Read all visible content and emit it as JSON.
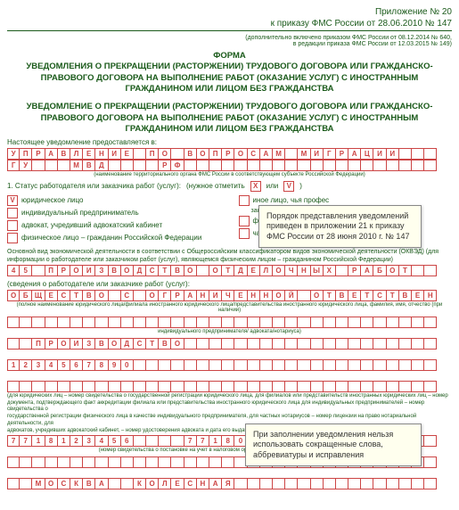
{
  "header": {
    "line1": "Приложение № 20",
    "line2": "к приказу ФМС России от 28.06.2010 № 147",
    "sub1": "(дополнительно включено приказом ФМС России от 08.12.2014 № 640,",
    "sub2": "в редакции приказа ФМС России от 12.03.2015 № 149)"
  },
  "title": {
    "l1": "ФОРМА",
    "l2": "УВЕДОМЛЕНИЯ О ПРЕКРАЩЕНИИ (РАСТОРЖЕНИИ) ТРУДОВОГО ДОГОВОРА ИЛИ ГРАЖДАНСКО-",
    "l3": "ПРАВОВОГО ДОГОВОРА НА ВЫПОЛНЕНИЕ РАБОТ (ОКАЗАНИЕ УСЛУГ) С ИНОСТРАННЫМ",
    "l4": "ГРАЖДАНИНОМ ИЛИ ЛИЦОМ БЕЗ ГРАЖДАНСТВА",
    "s1": "УВЕДОМЛЕНИЕ О ПРЕКРАЩЕНИИ (РАСТОРЖЕНИИ) ТРУДОВОГО ДОГОВОРА ИЛИ ГРАЖДАНСКО-",
    "s2": "ПРАВОВОГО ДОГОВОРА НА ВЫПОЛНЕНИЕ РАБОТ (ОКАЗАНИЕ УСЛУГ) С ИНОСТРАННЫМ",
    "s3": "ГРАЖДАНИНОМ ИЛИ ЛИЦОМ БЕЗ ГРАЖДАНСТВА"
  },
  "labels": {
    "present": "Настоящее уведомление предоставляется в:",
    "row1_caption": "(наименование территориального органа ФМС России в соответствующем субъекте Российской Федерации)",
    "status": "1. Статус работодателя или заказчика работ (услуг):",
    "mark": "(нужное отметить",
    "mark2": "или",
    "mark3": ")",
    "opt1": "юридическое лицо",
    "opt2": "индивидуальный предприниматель",
    "opt3": "адвокат, учредивший адвокатский кабинет",
    "opt4": "физическое лицо – гражданин Российской Федерации",
    "opt1b": "иное лицо, чья профес",
    "opt1c": "законами подлежит госу",
    "opt2b": "филиал иностранного юридического лица",
    "opt3b": "частный нотариус",
    "okved": "Основной вид экономической деятельности в соответствии с Общероссийским классификатором видов экономической деятельности (ОКВЭД) (для",
    "okved2": "информации о работодателе или заказчиком работ (услуг), являющемся физическим лицом – гражданином Российской Федерации)",
    "info": "(сведения о работодателе или заказчике работ (услуг):",
    "row3_caption": "(полное наименование юридического лица/филиала иностранного юридического лица/представительства иностранного юридического лица, фамилия, имя, отчество (при наличии)",
    "row3_caption2": "индивидуального предпринимателя/ адвоката/нотариуса)",
    "note1": "(для юридических лиц – номер свидетельства о государственной регистрации юридического лица, для филиалов или представительств иностранных юридических лиц – номер",
    "note2": "документа, подтверждающего факт аккредитации филиала или представительства иностранного юридического лица для индивидуальных предпринимателей – номер свидетельства о",
    "note3": "государственной регистрации физического лица в качестве индивидуального предпринимателя, для частных нотариусов – номер лицензии на право нотариальной деятельности, для",
    "note4": "адвокатов, учредивших адвокатский кабинет, – номер удостоверения адвоката и дата его выдачи, номер в реестре адвокатов субъекта Российской Федерации)",
    "footer": "(номер свидетельства о постановке на учет в налоговом органе, ИНН (при наличии), КПП (при наличии))"
  },
  "rows": {
    "r1": [
      "У",
      "П",
      "Р",
      "А",
      "В",
      "Л",
      "Е",
      "Н",
      "И",
      "Е",
      "",
      "П",
      "О",
      "",
      "В",
      "О",
      "П",
      "Р",
      "О",
      "С",
      "А",
      "М",
      "",
      "М",
      "И",
      "Г",
      "Р",
      "А",
      "Ц",
      "И",
      "И",
      ""
    ],
    "r1b": [
      "Г",
      "У",
      "",
      "",
      "",
      "М",
      "В",
      "Д",
      "",
      "",
      "",
      "",
      "Р",
      "Ф"
    ],
    "r2": [
      "4",
      "5",
      "",
      "П",
      "Р",
      "О",
      "И",
      "З",
      "В",
      "О",
      "Д",
      "С",
      "Т",
      "В",
      "О",
      "",
      "О",
      "Т",
      "Д",
      "Е",
      "Л",
      "О",
      "Ч",
      "Н",
      "Ы",
      "Х",
      "",
      "Р",
      "А",
      "Б",
      "О",
      "Т",
      "",
      ""
    ],
    "r3": [
      "О",
      "Б",
      "Щ",
      "Е",
      "С",
      "Т",
      "В",
      "О",
      "",
      "С",
      "",
      "О",
      "Г",
      "Р",
      "А",
      "Н",
      "И",
      "Ч",
      "Е",
      "Н",
      "Н",
      "О",
      "Й",
      "",
      "О",
      "Т",
      "В",
      "Е",
      "Т",
      "С",
      "Т",
      "В",
      "Е",
      "Н"
    ],
    "r4": [
      "",
      "",
      "",
      "",
      "",
      "",
      "",
      "",
      "",
      "",
      "",
      "",
      "",
      "",
      "",
      "",
      "",
      "",
      "",
      "",
      "",
      "",
      "",
      "",
      "",
      "",
      "",
      "",
      "",
      "",
      "",
      "",
      "",
      ""
    ],
    "r5": [
      "",
      "",
      "П",
      "Р",
      "О",
      "И",
      "З",
      "В",
      "О",
      "Д",
      "С",
      "Т",
      "В",
      "О",
      "",
      "",
      "",
      "",
      "",
      "",
      "",
      "",
      "",
      "",
      "",
      "",
      "",
      "",
      "",
      "",
      "",
      "",
      "",
      ""
    ],
    "r6": [
      "1",
      "2",
      "3",
      "4",
      "5",
      "6",
      "7",
      "8",
      "9",
      "0",
      "",
      "",
      "",
      "",
      "",
      "",
      "",
      "",
      "",
      "",
      "",
      "",
      "",
      "",
      "",
      "",
      "",
      "",
      "",
      "",
      "",
      "",
      "",
      ""
    ],
    "r7": [
      "",
      "",
      "",
      "",
      "",
      "",
      "",
      "",
      "",
      "",
      "",
      "",
      "",
      "",
      "",
      "",
      "",
      "",
      "",
      "",
      "",
      "",
      "",
      "",
      "",
      "",
      "",
      "",
      "",
      "",
      "",
      "",
      "",
      ""
    ],
    "r8": [
      "7",
      "7",
      "1",
      "8",
      "1",
      "2",
      "3",
      "4",
      "5",
      "6",
      "",
      "",
      "",
      "",
      "7",
      "7",
      "1",
      "8",
      "0",
      "1",
      "0",
      "0",
      "1",
      "",
      "",
      "",
      "",
      "",
      "",
      "",
      "",
      "",
      "",
      ""
    ],
    "r9": [
      "",
      "",
      "",
      "",
      "",
      "",
      "",
      "",
      "",
      "",
      "",
      "",
      "",
      "",
      "",
      "",
      "",
      "",
      "",
      "",
      "",
      "",
      "",
      "",
      "",
      "",
      "",
      "",
      "",
      "",
      "",
      "",
      "",
      ""
    ],
    "r10": [
      "",
      "",
      "М",
      "О",
      "С",
      "К",
      "В",
      "А",
      "",
      "",
      "К",
      "О",
      "Л",
      "Е",
      "С",
      "Н",
      "А",
      "Я",
      "",
      "",
      "",
      "",
      "",
      "",
      "",
      "",
      "",
      "",
      "",
      "",
      "",
      "",
      "",
      ""
    ]
  },
  "callouts": {
    "c1": "Порядок представления уведомлений приведен в приложении 21 к приказу ФМС России от 28 июня 2010 г. № 147",
    "c2": "При заполнении уведомления нельзя использовать сокращенные слова, аббревиатуры и исправления"
  }
}
